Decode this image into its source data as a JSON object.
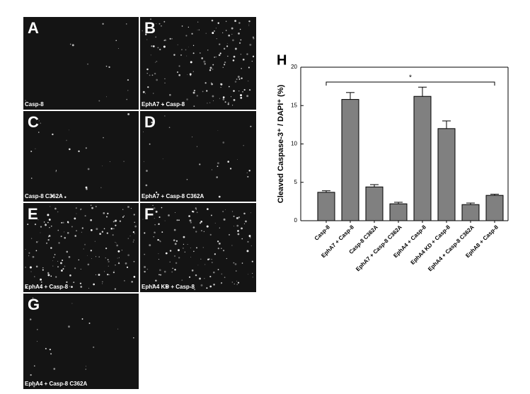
{
  "panels": [
    {
      "letter": "A",
      "caption": "Casp-8"
    },
    {
      "letter": "B",
      "caption": "EphA7 + Casp-8"
    },
    {
      "letter": "C",
      "caption": "Casp-8 C362A"
    },
    {
      "letter": "D",
      "caption": "EphA7 + Casp-8 C362A"
    },
    {
      "letter": "E",
      "caption": "EphA4 + Casp-8"
    },
    {
      "letter": "F",
      "caption": "EphA4 KD + Casp-8"
    },
    {
      "letter": "G",
      "caption": "EphA4 + Casp-8 C362A"
    }
  ],
  "chart_data": {
    "type": "bar",
    "panel_label": "H",
    "ylabel": "Cleaved Caspase-3⁺ / DAPI⁺ (%)",
    "categories": [
      "Casp-8",
      "EphA7 + Casp-8",
      "Casp-8 C362A",
      "EphA7 + Casp-8 C362A",
      "EphA4 + Casp-8",
      "EphA4 KD + Casp-8",
      "EphA4 + Casp-8 C362A",
      "EphA8 + Casp-8"
    ],
    "values": [
      3.7,
      15.8,
      4.4,
      2.2,
      16.2,
      12.0,
      2.1,
      3.3
    ],
    "errors": [
      0.2,
      0.9,
      0.3,
      0.2,
      1.2,
      1.0,
      0.2,
      0.15
    ],
    "color": "#808080",
    "ylim": [
      0,
      20
    ],
    "yticks": [
      0,
      5,
      10,
      15,
      20
    ],
    "annotation": "*"
  }
}
